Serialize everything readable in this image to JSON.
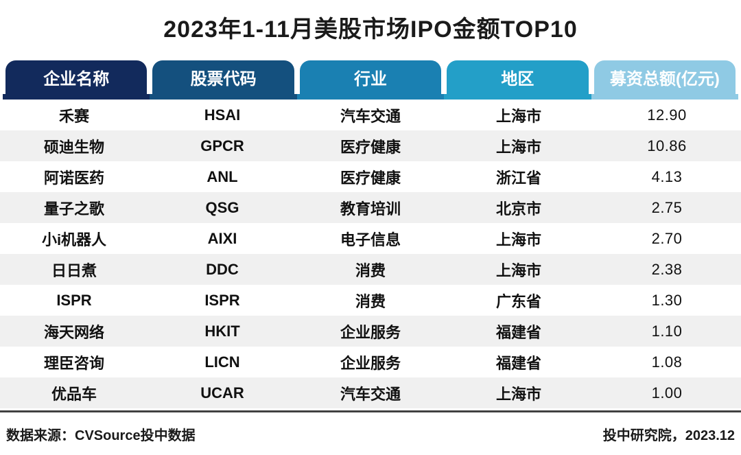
{
  "title": "2023年1-11月美股市场IPO金额TOP10",
  "chart_data": {
    "type": "table",
    "title": "2023年1-11月美股市场IPO金额TOP10",
    "columns": [
      "企业名称",
      "股票代码",
      "行业",
      "地区",
      "募资总额(亿元)"
    ],
    "rows": [
      [
        "禾赛",
        "HSAI",
        "汽车交通",
        "上海市",
        "12.90"
      ],
      [
        "硕迪生物",
        "GPCR",
        "医疗健康",
        "上海市",
        "10.86"
      ],
      [
        "阿诺医药",
        "ANL",
        "医疗健康",
        "浙江省",
        "4.13"
      ],
      [
        "量子之歌",
        "QSG",
        "教育培训",
        "北京市",
        "2.75"
      ],
      [
        "小i机器人",
        "AIXI",
        "电子信息",
        "上海市",
        "2.70"
      ],
      [
        "日日煮",
        "DDC",
        "消费",
        "上海市",
        "2.38"
      ],
      [
        "ISPR",
        "ISPR",
        "消费",
        "广东省",
        "1.30"
      ],
      [
        "海天网络",
        "HKIT",
        "企业服务",
        "福建省",
        "1.10"
      ],
      [
        "理臣咨询",
        "LICN",
        "企业服务",
        "福建省",
        "1.08"
      ],
      [
        "优品车",
        "UCAR",
        "汽车交通",
        "上海市",
        "1.00"
      ]
    ],
    "source_note": "数据来源：CVSource投中数据",
    "credit": "投中研究院，2023.12"
  },
  "header_colors": [
    "#122a5c",
    "#14507e",
    "#1a80b2",
    "#239fc8",
    "#8fcae4"
  ],
  "footer": {
    "source": "数据来源：CVSource投中数据",
    "credit": "投中研究院，2023.12"
  },
  "colors": {
    "row_alt": "#f0f0f0",
    "divider": "#404040",
    "text": "#111111",
    "header_text": "#ffffff"
  }
}
